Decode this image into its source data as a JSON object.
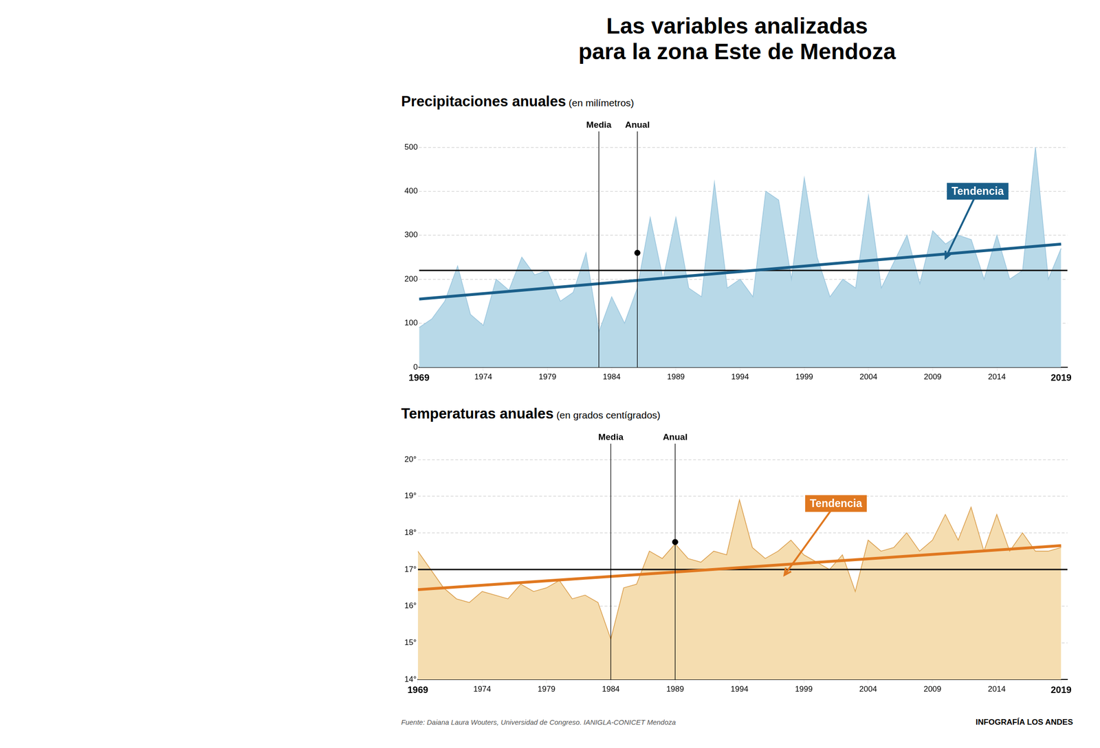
{
  "title": "Las variables analizadas\npara la zona Este de Mendoza",
  "annotations": [
    {
      "type": "source",
      "text": "Fuente: Daiana Laura Wouters, Universidad de Congreso. IANIGLA-CONICET Mendoza"
    },
    {
      "type": "credit",
      "text": "INFOGRAFÍA LOS ANDES"
    }
  ],
  "chart_data": [
    {
      "type": "line",
      "title": "Precipitaciones anuales",
      "subtitle": " (en milímetros)",
      "x": [
        1969,
        1970,
        1971,
        1972,
        1973,
        1974,
        1975,
        1976,
        1977,
        1978,
        1979,
        1980,
        1981,
        1982,
        1983,
        1984,
        1985,
        1986,
        1987,
        1988,
        1989,
        1990,
        1991,
        1992,
        1993,
        1994,
        1995,
        1996,
        1997,
        1998,
        1999,
        2000,
        2001,
        2002,
        2003,
        2004,
        2005,
        2006,
        2007,
        2008,
        2009,
        2010,
        2011,
        2012,
        2013,
        2014,
        2015,
        2016,
        2017,
        2018,
        2019
      ],
      "xlim": [
        1969,
        2019.5
      ],
      "xticks": [
        1969,
        1974,
        1979,
        1984,
        1989,
        1994,
        1999,
        2004,
        2009,
        2014,
        2019
      ],
      "ylim": [
        0,
        500
      ],
      "yticks": [
        0,
        100,
        200,
        300,
        400,
        500
      ],
      "grid": true,
      "series": [
        {
          "type": "area",
          "color": "#b8d9e8",
          "values": [
            90,
            110,
            150,
            230,
            120,
            95,
            200,
            175,
            250,
            210,
            220,
            150,
            170,
            260,
            80,
            160,
            100,
            180,
            340,
            200,
            340,
            180,
            160,
            420,
            180,
            200,
            160,
            400,
            380,
            200,
            430,
            250,
            160,
            200,
            180,
            390,
            180,
            240,
            300,
            190,
            310,
            280,
            300,
            290,
            200,
            300,
            200,
            220,
            500,
            200,
            270
          ]
        },
        {
          "type": "line",
          "color": "#9ec8df",
          "values": [
            90,
            110,
            150,
            230,
            120,
            95,
            200,
            175,
            250,
            210,
            220,
            150,
            170,
            260,
            80,
            160,
            100,
            180,
            340,
            200,
            340,
            180,
            160,
            420,
            180,
            200,
            160,
            400,
            380,
            200,
            430,
            250,
            160,
            200,
            180,
            390,
            180,
            240,
            300,
            190,
            310,
            280,
            300,
            290,
            200,
            300,
            200,
            220,
            500,
            200,
            270
          ]
        },
        {
          "type": "trend",
          "color": "#1a5f8a",
          "x": [
            1969,
            2019
          ],
          "values": [
            155,
            280
          ]
        }
      ],
      "annotations": [
        {
          "type": "hline",
          "y": 220,
          "color": "#111111"
        },
        {
          "type": "vline",
          "x": 1983,
          "text": "Media",
          "color": "black"
        },
        {
          "type": "vline",
          "x": 1986,
          "text": "Anual",
          "color": "black"
        },
        {
          "type": "point",
          "x": 1986,
          "y": 260,
          "color": "black"
        },
        {
          "type": "arrow",
          "text": "Tendencia",
          "x": 2012.5,
          "y": 400,
          "x_to": 2010,
          "y_to": 248,
          "color": "#1a5f8a"
        }
      ]
    },
    {
      "type": "line",
      "title": "Temperaturas anuales",
      "subtitle": " (en grados centígrados)",
      "x": [
        1969,
        1970,
        1971,
        1972,
        1973,
        1974,
        1975,
        1976,
        1977,
        1978,
        1979,
        1980,
        1981,
        1982,
        1983,
        1984,
        1985,
        1986,
        1987,
        1988,
        1989,
        1990,
        1991,
        1992,
        1993,
        1994,
        1995,
        1996,
        1997,
        1998,
        1999,
        2000,
        2001,
        2002,
        2003,
        2004,
        2005,
        2006,
        2007,
        2008,
        2009,
        2010,
        2011,
        2012,
        2013,
        2014,
        2015,
        2016,
        2017,
        2018,
        2019
      ],
      "xlim": [
        1969,
        2019.5
      ],
      "xticks": [
        1969,
        1974,
        1979,
        1984,
        1989,
        1994,
        1999,
        2004,
        2009,
        2014,
        2019
      ],
      "ylim": [
        14,
        20
      ],
      "yticks": [
        {
          "value": 14,
          "label": "14°"
        },
        {
          "value": 15,
          "label": "15°"
        },
        {
          "value": 16,
          "label": "16°"
        },
        {
          "value": 17,
          "label": "17°"
        },
        {
          "value": 18,
          "label": "18°"
        },
        {
          "value": 19,
          "label": "19°"
        },
        {
          "value": 20,
          "label": "20°"
        }
      ],
      "grid": true,
      "series": [
        {
          "type": "area",
          "color": "#f5ddb0",
          "values": [
            17.5,
            17.0,
            16.5,
            16.2,
            16.1,
            16.4,
            16.3,
            16.2,
            16.6,
            16.4,
            16.5,
            16.7,
            16.2,
            16.3,
            16.1,
            15.1,
            16.5,
            16.6,
            17.5,
            17.3,
            17.7,
            17.3,
            17.2,
            17.5,
            17.4,
            18.9,
            17.6,
            17.3,
            17.5,
            17.8,
            17.4,
            17.2,
            17.0,
            17.4,
            16.4,
            17.8,
            17.5,
            17.6,
            18.0,
            17.5,
            17.8,
            18.5,
            17.8,
            18.7,
            17.5,
            18.5,
            17.5,
            18.0,
            17.5,
            17.5,
            17.6
          ]
        },
        {
          "type": "line",
          "color": "#dba050",
          "values": [
            17.5,
            17.0,
            16.5,
            16.2,
            16.1,
            16.4,
            16.3,
            16.2,
            16.6,
            16.4,
            16.5,
            16.7,
            16.2,
            16.3,
            16.1,
            15.1,
            16.5,
            16.6,
            17.5,
            17.3,
            17.7,
            17.3,
            17.2,
            17.5,
            17.4,
            18.9,
            17.6,
            17.3,
            17.5,
            17.8,
            17.4,
            17.2,
            17.0,
            17.4,
            16.4,
            17.8,
            17.5,
            17.6,
            18.0,
            17.5,
            17.8,
            18.5,
            17.8,
            18.7,
            17.5,
            18.5,
            17.5,
            18.0,
            17.5,
            17.5,
            17.6
          ]
        },
        {
          "type": "trend",
          "color": "#e07820",
          "x": [
            1969,
            2019
          ],
          "values": [
            16.45,
            17.65
          ]
        }
      ],
      "annotations": [
        {
          "type": "hline",
          "y": 17.0,
          "color": "#111111"
        },
        {
          "type": "vline",
          "x": 1984,
          "text": "Media",
          "color": "black"
        },
        {
          "type": "vline",
          "x": 1989,
          "text": "Anual",
          "color": "black"
        },
        {
          "type": "point",
          "x": 1989,
          "y": 17.75,
          "color": "black"
        },
        {
          "type": "arrow",
          "text": "Tendencia",
          "x": 2001.5,
          "y": 18.8,
          "x_to": 1997.5,
          "y_to": 16.85,
          "color": "#e07820"
        }
      ]
    }
  ]
}
